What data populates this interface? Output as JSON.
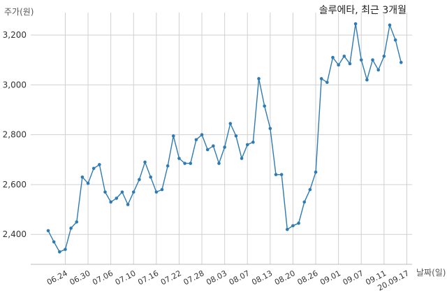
{
  "chart_data": {
    "type": "line",
    "title": "솔루에타, 최근 3개월",
    "ylabel": "주가(원)",
    "xlabel": "날짜(일)",
    "ylim": [
      2280,
      3290
    ],
    "yticks": [
      "2,400",
      "2,600",
      "2,800",
      "3,000",
      "3,200"
    ],
    "ytick_values": [
      2400,
      2600,
      2800,
      3000,
      3200
    ],
    "xticks": [
      "06.24",
      "06.30",
      "07.06",
      "07.10",
      "07.16",
      "07.22",
      "07.28",
      "08.03",
      "08.07",
      "08.13",
      "08.20",
      "08.26",
      "09.01",
      "09.07",
      "09.11",
      "20.09.17"
    ],
    "xtick_indices": [
      3,
      7,
      11,
      15,
      19,
      23,
      27,
      31,
      35,
      39,
      43,
      47,
      51,
      55,
      59,
      63
    ],
    "grid": true,
    "color": "#2e7bb4",
    "series": [
      {
        "values": [
          2415,
          2370,
          2330,
          2340,
          2425,
          2450,
          2630,
          2605,
          2665,
          2680,
          2570,
          2530,
          2545,
          2570,
          2520,
          2570,
          2620,
          2690,
          2630,
          2570,
          2580,
          2675,
          2795,
          2705,
          2685,
          2685,
          2780,
          2800,
          2740,
          2755,
          2685,
          2750,
          2845,
          2795,
          2705,
          2760,
          2770,
          3025,
          2915,
          2825,
          2640,
          2640,
          2420,
          2435,
          2445,
          2530,
          2580,
          2650,
          3025,
          3010,
          3110,
          3080,
          3115,
          3085,
          3245,
          3100,
          3020,
          3100,
          3060,
          3115,
          3240,
          3180,
          3090
        ]
      }
    ]
  }
}
